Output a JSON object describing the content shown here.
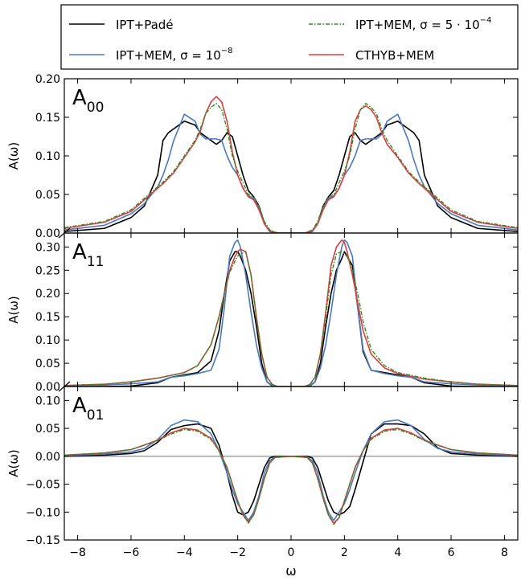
{
  "legend": {
    "entries": [
      {
        "label": "IPT+Padé",
        "color": "#000000",
        "style": "solid"
      },
      {
        "label": "IPT+MEM, σ = 10",
        "exp": "−8",
        "color": "#4a78c0",
        "style": "solid"
      },
      {
        "label": "IPT+MEM, σ = 5 · 10",
        "exp": "−4",
        "color": "#2e8b22",
        "style": "dashdot"
      },
      {
        "label": "CTHYB+MEM",
        "color": "#e03c3c",
        "style": "solid"
      }
    ],
    "placement": "top"
  },
  "colors": {
    "pade": "#000000",
    "mem8": "#4a78c0",
    "mem4": "#2e8b22",
    "cthyb": "#e03c3c",
    "zero_line": "#999999"
  },
  "chart_data": [
    {
      "type": "line",
      "panel_label": "A",
      "panel_sub": "00",
      "ylabel": "A(ω)",
      "xlim": [
        -8.5,
        8.5
      ],
      "ylim": [
        0.0,
        0.2
      ],
      "yticks": [
        0.0,
        0.05,
        0.1,
        0.15,
        0.2
      ],
      "yticklabels": [
        "0.00",
        "0.05",
        "0.10",
        "0.15",
        "0.20"
      ],
      "x": [
        -8.5,
        -7,
        -6,
        -5.5,
        -5,
        -4.8,
        -4.6,
        -4.4,
        -4,
        -3.6,
        -3.4,
        -3.2,
        -3,
        -2.8,
        -2.6,
        -2.4,
        -2.2,
        -2,
        -1.8,
        -1.6,
        -1.4,
        -1.2,
        -1,
        -0.8,
        -0.5,
        0,
        0.5,
        0.8,
        1,
        1.2,
        1.4,
        1.6,
        1.8,
        2,
        2.2,
        2.4,
        2.6,
        2.8,
        3,
        3.2,
        3.4,
        3.6,
        4,
        4.4,
        4.6,
        4.8,
        5,
        5.5,
        6,
        7,
        8.5
      ],
      "series": [
        {
          "name": "IPT+Padé",
          "key": "pade",
          "values": [
            0.002,
            0.006,
            0.02,
            0.035,
            0.075,
            0.12,
            0.13,
            0.135,
            0.145,
            0.14,
            0.13,
            0.125,
            0.12,
            0.115,
            0.12,
            0.13,
            0.125,
            0.1,
            0.075,
            0.055,
            0.047,
            0.035,
            0.012,
            0.002,
            0,
            0,
            0,
            0.002,
            0.012,
            0.035,
            0.047,
            0.055,
            0.075,
            0.1,
            0.125,
            0.13,
            0.12,
            0.115,
            0.12,
            0.125,
            0.13,
            0.14,
            0.145,
            0.135,
            0.13,
            0.12,
            0.075,
            0.035,
            0.02,
            0.006,
            0.002
          ]
        },
        {
          "name": "IPT+MEM, σ = 10^-8",
          "key": "mem8",
          "values": [
            0.004,
            0.01,
            0.025,
            0.038,
            0.06,
            0.075,
            0.095,
            0.12,
            0.154,
            0.145,
            0.128,
            0.122,
            0.122,
            0.122,
            0.12,
            0.1,
            0.085,
            0.075,
            0.058,
            0.048,
            0.045,
            0.032,
            0.012,
            0.002,
            0,
            0,
            0,
            0.002,
            0.012,
            0.032,
            0.045,
            0.048,
            0.058,
            0.075,
            0.085,
            0.1,
            0.12,
            0.122,
            0.122,
            0.122,
            0.128,
            0.145,
            0.154,
            0.12,
            0.095,
            0.075,
            0.06,
            0.038,
            0.025,
            0.01,
            0.004
          ]
        },
        {
          "name": "IPT+MEM, σ = 5·10^-4",
          "key": "mem4",
          "values": [
            0.007,
            0.015,
            0.03,
            0.045,
            0.06,
            0.066,
            0.073,
            0.08,
            0.1,
            0.12,
            0.135,
            0.155,
            0.163,
            0.168,
            0.16,
            0.135,
            0.1,
            0.08,
            0.065,
            0.05,
            0.047,
            0.035,
            0.015,
            0.004,
            0,
            0,
            0,
            0.004,
            0.015,
            0.035,
            0.047,
            0.05,
            0.065,
            0.08,
            0.1,
            0.135,
            0.16,
            0.168,
            0.163,
            0.155,
            0.135,
            0.12,
            0.1,
            0.08,
            0.073,
            0.066,
            0.06,
            0.045,
            0.03,
            0.015,
            0.007
          ]
        },
        {
          "name": "CTHYB+MEM",
          "key": "cthyb",
          "values": [
            0.006,
            0.014,
            0.028,
            0.043,
            0.058,
            0.064,
            0.071,
            0.078,
            0.098,
            0.118,
            0.132,
            0.155,
            0.17,
            0.177,
            0.17,
            0.145,
            0.105,
            0.075,
            0.058,
            0.047,
            0.043,
            0.03,
            0.012,
            0.003,
            0,
            0,
            0,
            0.003,
            0.012,
            0.03,
            0.043,
            0.047,
            0.058,
            0.075,
            0.105,
            0.145,
            0.16,
            0.165,
            0.16,
            0.15,
            0.13,
            0.115,
            0.098,
            0.078,
            0.071,
            0.064,
            0.058,
            0.043,
            0.028,
            0.014,
            0.006
          ]
        }
      ]
    },
    {
      "type": "line",
      "panel_label": "A",
      "panel_sub": "11",
      "ylabel": "A(ω)",
      "xlim": [
        -8.5,
        8.5
      ],
      "ylim": [
        0.0,
        0.33
      ],
      "yticks": [
        0.0,
        0.05,
        0.1,
        0.15,
        0.2,
        0.25,
        0.3
      ],
      "yticklabels": [
        "0.00",
        "0.05",
        "0.10",
        "0.15",
        "0.20",
        "0.25",
        "0.30"
      ],
      "x": [
        -8.5,
        -7,
        -6,
        -5,
        -4.5,
        -4,
        -3.5,
        -3,
        -2.7,
        -2.5,
        -2.3,
        -2.1,
        -2,
        -1.9,
        -1.7,
        -1.5,
        -1.3,
        -1.1,
        -0.9,
        -0.7,
        -0.5,
        0,
        0.5,
        0.7,
        0.9,
        1.1,
        1.3,
        1.5,
        1.7,
        1.9,
        2,
        2.1,
        2.3,
        2.5,
        2.7,
        3,
        3.5,
        4,
        4.5,
        5,
        6,
        7,
        8.5
      ],
      "series": [
        {
          "name": "IPT+Padé",
          "key": "pade",
          "values": [
            0,
            0,
            0.001,
            0.008,
            0.02,
            0.025,
            0.03,
            0.055,
            0.12,
            0.2,
            0.27,
            0.29,
            0.29,
            0.28,
            0.25,
            0.2,
            0.13,
            0.05,
            0.01,
            0.001,
            0,
            0,
            0,
            0.001,
            0.01,
            0.05,
            0.13,
            0.2,
            0.25,
            0.275,
            0.29,
            0.28,
            0.26,
            0.17,
            0.075,
            0.035,
            0.03,
            0.025,
            0.02,
            0.008,
            0.001,
            0,
            0
          ]
        },
        {
          "name": "IPT+MEM, σ = 10^-8",
          "key": "mem8",
          "values": [
            0.001,
            0.003,
            0.006,
            0.01,
            0.02,
            0.023,
            0.028,
            0.035,
            0.08,
            0.17,
            0.28,
            0.31,
            0.315,
            0.3,
            0.24,
            0.16,
            0.09,
            0.04,
            0.01,
            0.002,
            0,
            0,
            0,
            0.002,
            0.01,
            0.04,
            0.09,
            0.16,
            0.24,
            0.3,
            0.315,
            0.31,
            0.28,
            0.17,
            0.08,
            0.035,
            0.028,
            0.023,
            0.02,
            0.01,
            0.006,
            0.003,
            0.001
          ]
        },
        {
          "name": "IPT+MEM, σ = 5·10^-4",
          "key": "mem4",
          "values": [
            0.002,
            0.005,
            0.01,
            0.018,
            0.024,
            0.03,
            0.045,
            0.09,
            0.15,
            0.2,
            0.245,
            0.27,
            0.28,
            0.285,
            0.29,
            0.24,
            0.15,
            0.07,
            0.02,
            0.004,
            0,
            0,
            0,
            0.004,
            0.02,
            0.07,
            0.15,
            0.24,
            0.285,
            0.29,
            0.285,
            0.28,
            0.25,
            0.2,
            0.14,
            0.08,
            0.045,
            0.03,
            0.024,
            0.018,
            0.01,
            0.005,
            0.002
          ]
        },
        {
          "name": "CTHYB+MEM",
          "key": "cthyb",
          "values": [
            0.002,
            0.005,
            0.01,
            0.018,
            0.024,
            0.03,
            0.045,
            0.09,
            0.15,
            0.2,
            0.25,
            0.28,
            0.29,
            0.295,
            0.29,
            0.24,
            0.15,
            0.07,
            0.02,
            0.004,
            0,
            0,
            0,
            0.004,
            0.02,
            0.07,
            0.16,
            0.26,
            0.3,
            0.315,
            0.31,
            0.29,
            0.24,
            0.18,
            0.12,
            0.07,
            0.04,
            0.028,
            0.022,
            0.016,
            0.01,
            0.005,
            0.002
          ]
        }
      ]
    },
    {
      "type": "line",
      "panel_label": "A",
      "panel_sub": "01",
      "ylabel": "A(ω)",
      "xlabel": "ω",
      "xlim": [
        -8.5,
        8.5
      ],
      "ylim": [
        -0.15,
        0.125
      ],
      "yticks": [
        -0.15,
        -0.1,
        -0.05,
        0.0,
        0.05,
        0.1
      ],
      "yticklabels": [
        "−0.15",
        "−0.10",
        "−0.05",
        "0.00",
        "0.05",
        "0.10"
      ],
      "xticks": [
        -8,
        -6,
        -4,
        -2,
        0,
        2,
        4,
        6,
        8
      ],
      "xticklabels": [
        "−8",
        "−6",
        "−4",
        "−2",
        "0",
        "2",
        "4",
        "6",
        "8"
      ],
      "x": [
        -8.5,
        -7,
        -6,
        -5.5,
        -5,
        -4.5,
        -4,
        -3.5,
        -3,
        -2.7,
        -2.4,
        -2.2,
        -2,
        -1.8,
        -1.6,
        -1.4,
        -1.2,
        -1,
        -0.8,
        -0.6,
        0,
        0.6,
        0.8,
        1,
        1.2,
        1.4,
        1.6,
        1.8,
        2,
        2.2,
        2.4,
        2.7,
        3,
        3.5,
        4,
        4.5,
        5,
        5.5,
        6,
        7,
        8.5
      ],
      "series": [
        {
          "name": "IPT+Padé",
          "key": "pade",
          "values": [
            0,
            0.002,
            0.005,
            0.01,
            0.025,
            0.048,
            0.055,
            0.058,
            0.05,
            0.02,
            -0.03,
            -0.07,
            -0.1,
            -0.105,
            -0.1,
            -0.08,
            -0.05,
            -0.02,
            -0.003,
            0,
            0,
            0,
            -0.003,
            -0.02,
            -0.05,
            -0.08,
            -0.1,
            -0.105,
            -0.1,
            -0.09,
            -0.06,
            -0.01,
            0.04,
            0.058,
            0.058,
            0.055,
            0.04,
            0.015,
            0.005,
            0.002,
            0
          ]
        },
        {
          "name": "IPT+MEM, σ = 10^-8",
          "key": "mem8",
          "values": [
            0.001,
            0.004,
            0.008,
            0.014,
            0.03,
            0.055,
            0.065,
            0.062,
            0.04,
            0.01,
            -0.03,
            -0.06,
            -0.085,
            -0.1,
            -0.115,
            -0.1,
            -0.07,
            -0.03,
            -0.008,
            -0.001,
            0,
            -0.001,
            -0.008,
            -0.03,
            -0.07,
            -0.1,
            -0.115,
            -0.1,
            -0.085,
            -0.06,
            -0.03,
            0.01,
            0.04,
            0.062,
            0.065,
            0.055,
            0.03,
            0.014,
            0.008,
            0.004,
            0.001
          ]
        },
        {
          "name": "IPT+MEM, σ = 5·10^-4",
          "key": "mem4",
          "values": [
            0.002,
            0.006,
            0.012,
            0.02,
            0.028,
            0.04,
            0.048,
            0.045,
            0.03,
            0.01,
            -0.02,
            -0.05,
            -0.08,
            -0.105,
            -0.12,
            -0.105,
            -0.075,
            -0.04,
            -0.012,
            -0.002,
            0,
            -0.002,
            -0.012,
            -0.04,
            -0.075,
            -0.105,
            -0.122,
            -0.11,
            -0.08,
            -0.05,
            -0.02,
            0.01,
            0.03,
            0.045,
            0.048,
            0.04,
            0.028,
            0.02,
            0.012,
            0.006,
            0.002
          ]
        },
        {
          "name": "CTHYB+MEM",
          "key": "cthyb",
          "values": [
            0.002,
            0.006,
            0.012,
            0.02,
            0.029,
            0.042,
            0.05,
            0.047,
            0.032,
            0.01,
            -0.02,
            -0.05,
            -0.08,
            -0.105,
            -0.118,
            -0.105,
            -0.075,
            -0.04,
            -0.012,
            -0.002,
            0,
            -0.002,
            -0.012,
            -0.04,
            -0.075,
            -0.105,
            -0.12,
            -0.11,
            -0.08,
            -0.05,
            -0.02,
            0.01,
            0.032,
            0.047,
            0.05,
            0.042,
            0.029,
            0.02,
            0.012,
            0.006,
            0.002
          ]
        }
      ]
    }
  ]
}
